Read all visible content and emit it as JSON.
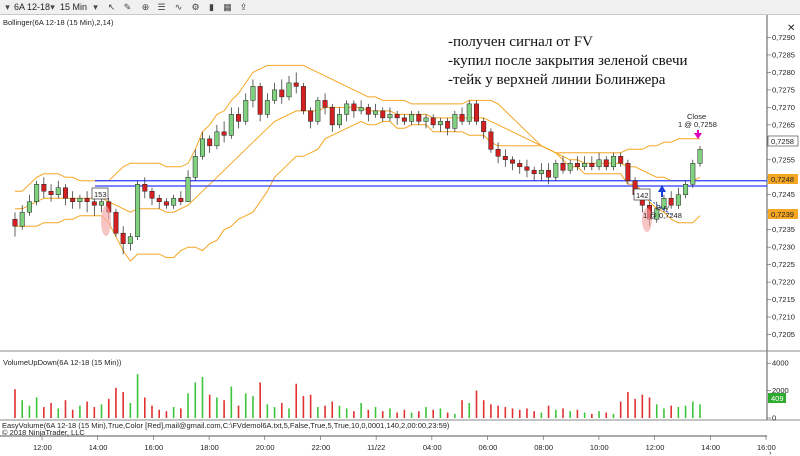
{
  "toolbar": {
    "instrument": "6A 12-18",
    "timeframe": "15 Min",
    "icons": [
      "instrument-dropdown-icon",
      "interval-dropdown-icon",
      "cursor-icon",
      "drawing-tools-icon",
      "zoom-icon",
      "properties-icon",
      "indicators-icon",
      "strategies-icon",
      "chart-style-icon",
      "data-box-icon",
      "share-icon"
    ]
  },
  "indicator_label": "Bollinger(6A 12-18 (15 Min),2,14)",
  "volume_label": "VolumeUpDown(6A 12-18 (15 Min))",
  "strategy_label": "EasyVolume(6A 12-18 (15 Min),True,Color [Red],mail@gmail.com,C:\\FVdemol6A.txt,5,False,True,5,True,10,0,0001,140,2,00:00,23:59)",
  "copyright": "© 2018 NinjaTrader, LLC",
  "notes": [
    "-получен сигнал от FV",
    "-купил после закрытия зеленой свечи",
    "-тейк у верхней линии Болинжера"
  ],
  "fv_level_label": "153",
  "entry_label_num": "142",
  "buy_label": "Buy",
  "buy_price_label": "1 @ 0,7248",
  "close_label": "Close",
  "close_price_label": "1 @ 0,7258",
  "price_badges": {
    "last": "0,7258",
    "fv": "0,7248",
    "buy": "0,7239"
  },
  "volume_badge": "409",
  "colors": {
    "up": "#7fd07f",
    "down": "#d42020",
    "band": "#f5a623",
    "level": "#2b3cff"
  },
  "chart_data": {
    "type": "candlestick",
    "x_labels": [
      "12:00",
      "14:00",
      "16:00",
      "18:00",
      "20:00",
      "22:00",
      "11/22",
      "04:00",
      "06:00",
      "08:00",
      "10:00",
      "12:00",
      "14:00",
      "16:00"
    ],
    "y_ticks": [
      "0,7290",
      "0,7285",
      "0,7280",
      "0,7275",
      "0,7270",
      "0,7265",
      "0,7260",
      "0,7255",
      "0,7250",
      "0,7245",
      "0,7240",
      "0,7235",
      "0,7230",
      "0,7225",
      "0,7220",
      "0,7215",
      "0,7210",
      "0,7205"
    ],
    "ylim": [
      0.7202,
      0.7293
    ],
    "volume_ticks": [
      "4000",
      "2000",
      "0"
    ],
    "volume_ylim": [
      0,
      4600
    ],
    "horizontal_levels": [
      0.7249,
      0.72475
    ],
    "candles": [
      [
        0.7238,
        0.7236,
        0.724,
        0.7233
      ],
      [
        0.7236,
        0.724,
        0.7242,
        0.7235
      ],
      [
        0.724,
        0.7243,
        0.7245,
        0.7239
      ],
      [
        0.7243,
        0.7248,
        0.7249,
        0.7242
      ],
      [
        0.7248,
        0.7246,
        0.725,
        0.7244
      ],
      [
        0.7246,
        0.7245,
        0.7248,
        0.7243
      ],
      [
        0.7245,
        0.7247,
        0.7249,
        0.7244
      ],
      [
        0.7247,
        0.7244,
        0.7248,
        0.7242
      ],
      [
        0.7244,
        0.7243,
        0.7246,
        0.7241
      ],
      [
        0.7243,
        0.7244,
        0.7245,
        0.7241
      ],
      [
        0.7244,
        0.7243,
        0.7246,
        0.724
      ],
      [
        0.7243,
        0.7242,
        0.7244,
        0.7239
      ],
      [
        0.7242,
        0.7243,
        0.7245,
        0.724
      ],
      [
        0.7243,
        0.724,
        0.7244,
        0.7238
      ],
      [
        0.724,
        0.7234,
        0.7241,
        0.7233
      ],
      [
        0.7234,
        0.7231,
        0.7236,
        0.7228
      ],
      [
        0.7231,
        0.7233,
        0.7234,
        0.7229
      ],
      [
        0.7233,
        0.7248,
        0.7249,
        0.7232
      ],
      [
        0.7248,
        0.7246,
        0.725,
        0.7244
      ],
      [
        0.7246,
        0.7244,
        0.7247,
        0.7242
      ],
      [
        0.7244,
        0.7243,
        0.7245,
        0.7241
      ],
      [
        0.7243,
        0.7242,
        0.7244,
        0.7241
      ],
      [
        0.7242,
        0.7244,
        0.7245,
        0.7241
      ],
      [
        0.7244,
        0.7243,
        0.7246,
        0.7242
      ],
      [
        0.7243,
        0.725,
        0.7252,
        0.7243
      ],
      [
        0.725,
        0.7256,
        0.7258,
        0.7249
      ],
      [
        0.7256,
        0.7261,
        0.7263,
        0.7255
      ],
      [
        0.7261,
        0.7259,
        0.7262,
        0.7257
      ],
      [
        0.7259,
        0.7263,
        0.7265,
        0.7258
      ],
      [
        0.7263,
        0.7262,
        0.7266,
        0.726
      ],
      [
        0.7262,
        0.7268,
        0.727,
        0.7261
      ],
      [
        0.7268,
        0.7266,
        0.727,
        0.7264
      ],
      [
        0.7266,
        0.7272,
        0.7274,
        0.7265
      ],
      [
        0.7272,
        0.7276,
        0.7278,
        0.727
      ],
      [
        0.7276,
        0.7268,
        0.7277,
        0.7266
      ],
      [
        0.7268,
        0.7272,
        0.7274,
        0.7267
      ],
      [
        0.7272,
        0.7275,
        0.7277,
        0.7271
      ],
      [
        0.7275,
        0.7273,
        0.7278,
        0.7271
      ],
      [
        0.7273,
        0.7277,
        0.7279,
        0.7272
      ],
      [
        0.7277,
        0.7276,
        0.728,
        0.7274
      ],
      [
        0.7276,
        0.7269,
        0.7277,
        0.7268
      ],
      [
        0.7269,
        0.7266,
        0.727,
        0.7264
      ],
      [
        0.7266,
        0.7272,
        0.7273,
        0.7265
      ],
      [
        0.7272,
        0.727,
        0.7274,
        0.7268
      ],
      [
        0.727,
        0.7265,
        0.7271,
        0.7263
      ],
      [
        0.7265,
        0.7268,
        0.727,
        0.7264
      ],
      [
        0.7268,
        0.7271,
        0.7272,
        0.7266
      ],
      [
        0.7271,
        0.7269,
        0.7272,
        0.7267
      ],
      [
        0.7269,
        0.727,
        0.7272,
        0.7268
      ],
      [
        0.727,
        0.7268,
        0.7271,
        0.7266
      ],
      [
        0.7268,
        0.7269,
        0.7271,
        0.7267
      ],
      [
        0.7269,
        0.7267,
        0.727,
        0.7266
      ],
      [
        0.7267,
        0.7268,
        0.727,
        0.7266
      ],
      [
        0.7268,
        0.7267,
        0.7269,
        0.7265
      ],
      [
        0.7267,
        0.7266,
        0.7268,
        0.7265
      ],
      [
        0.7266,
        0.7268,
        0.7269,
        0.7265
      ],
      [
        0.7268,
        0.7266,
        0.7269,
        0.7265
      ],
      [
        0.7266,
        0.7267,
        0.7268,
        0.7264
      ],
      [
        0.7267,
        0.7265,
        0.7268,
        0.7264
      ],
      [
        0.7265,
        0.7266,
        0.7267,
        0.7263
      ],
      [
        0.7266,
        0.7264,
        0.7267,
        0.7262
      ],
      [
        0.7264,
        0.7268,
        0.7269,
        0.7263
      ],
      [
        0.7268,
        0.7266,
        0.727,
        0.7265
      ],
      [
        0.7266,
        0.7271,
        0.7272,
        0.7265
      ],
      [
        0.7271,
        0.7266,
        0.7272,
        0.7265
      ],
      [
        0.7266,
        0.7263,
        0.7267,
        0.7261
      ],
      [
        0.7263,
        0.7258,
        0.7264,
        0.7257
      ],
      [
        0.7258,
        0.7256,
        0.726,
        0.7254
      ],
      [
        0.7256,
        0.7255,
        0.7258,
        0.7253
      ],
      [
        0.7255,
        0.7254,
        0.7256,
        0.7252
      ],
      [
        0.7254,
        0.7253,
        0.7255,
        0.7251
      ],
      [
        0.7253,
        0.7252,
        0.7255,
        0.725
      ],
      [
        0.7252,
        0.7251,
        0.7253,
        0.7249
      ],
      [
        0.7251,
        0.7252,
        0.7254,
        0.7249
      ],
      [
        0.7252,
        0.725,
        0.7254,
        0.7248
      ],
      [
        0.725,
        0.7254,
        0.7255,
        0.7249
      ],
      [
        0.7254,
        0.7252,
        0.7256,
        0.7251
      ],
      [
        0.7252,
        0.7254,
        0.7255,
        0.7251
      ],
      [
        0.7254,
        0.7253,
        0.7256,
        0.7252
      ],
      [
        0.7253,
        0.7254,
        0.7256,
        0.7252
      ],
      [
        0.7254,
        0.7253,
        0.7256,
        0.7252
      ],
      [
        0.7253,
        0.7255,
        0.7257,
        0.7252
      ],
      [
        0.7255,
        0.7253,
        0.7256,
        0.7252
      ],
      [
        0.7253,
        0.7256,
        0.7257,
        0.7252
      ],
      [
        0.7256,
        0.7254,
        0.7257,
        0.7253
      ],
      [
        0.7254,
        0.7249,
        0.7255,
        0.7248
      ],
      [
        0.7249,
        0.7245,
        0.725,
        0.7244
      ],
      [
        0.7245,
        0.7242,
        0.7246,
        0.724
      ],
      [
        0.7242,
        0.7238,
        0.7243,
        0.7236
      ],
      [
        0.7238,
        0.7241,
        0.7243,
        0.7237
      ],
      [
        0.7241,
        0.7244,
        0.7245,
        0.724
      ],
      [
        0.7244,
        0.7242,
        0.7246,
        0.7241
      ],
      [
        0.7242,
        0.7245,
        0.7247,
        0.7241
      ],
      [
        0.7245,
        0.7248,
        0.7249,
        0.7244
      ],
      [
        0.7248,
        0.7254,
        0.7255,
        0.7247
      ],
      [
        0.7254,
        0.7258,
        0.7259,
        0.7253
      ]
    ],
    "bollinger_upper": [
      0.7246,
      0.7246,
      0.7248,
      0.725,
      0.7251,
      0.7251,
      0.7251,
      0.725,
      0.725,
      0.7249,
      0.7249,
      0.7249,
      0.7249,
      0.7249,
      0.7251,
      0.7253,
      0.7254,
      0.7254,
      0.7254,
      0.7254,
      0.7254,
      0.7253,
      0.7253,
      0.7253,
      0.7254,
      0.7258,
      0.7263,
      0.7265,
      0.7268,
      0.7269,
      0.7272,
      0.7274,
      0.7277,
      0.728,
      0.7281,
      0.7282,
      0.7282,
      0.7282,
      0.7282,
      0.7282,
      0.7282,
      0.7281,
      0.728,
      0.7279,
      0.7278,
      0.7277,
      0.7276,
      0.7275,
      0.7274,
      0.7273,
      0.7273,
      0.7272,
      0.7272,
      0.7272,
      0.7272,
      0.7271,
      0.7271,
      0.7271,
      0.7271,
      0.7271,
      0.7271,
      0.7271,
      0.7271,
      0.7272,
      0.7272,
      0.7272,
      0.7272,
      0.7271,
      0.7269,
      0.7267,
      0.7265,
      0.7263,
      0.7261,
      0.7259,
      0.7258,
      0.7257,
      0.7257,
      0.7257,
      0.7257,
      0.7257,
      0.7257,
      0.7257,
      0.7257,
      0.7257,
      0.7257,
      0.7258,
      0.7258,
      0.7258,
      0.7259,
      0.7259,
      0.726,
      0.726,
      0.7261,
      0.7261,
      0.7261,
      0.7261
    ],
    "bollinger_middle": [
      0.7241,
      0.7241,
      0.7242,
      0.7243,
      0.7244,
      0.7244,
      0.7244,
      0.7244,
      0.7244,
      0.7244,
      0.7244,
      0.7244,
      0.7244,
      0.7243,
      0.7242,
      0.7241,
      0.724,
      0.7241,
      0.7241,
      0.7241,
      0.7241,
      0.724,
      0.724,
      0.7241,
      0.7242,
      0.7244,
      0.7246,
      0.7248,
      0.725,
      0.7252,
      0.7254,
      0.7256,
      0.7258,
      0.726,
      0.7262,
      0.7264,
      0.7266,
      0.7267,
      0.7268,
      0.7269,
      0.7269,
      0.7269,
      0.7269,
      0.727,
      0.727,
      0.727,
      0.727,
      0.727,
      0.727,
      0.7269,
      0.7269,
      0.7269,
      0.7269,
      0.7268,
      0.7268,
      0.7268,
      0.7268,
      0.7268,
      0.7267,
      0.7267,
      0.7267,
      0.7267,
      0.7267,
      0.7267,
      0.7267,
      0.7267,
      0.7266,
      0.7265,
      0.7264,
      0.7263,
      0.7262,
      0.7261,
      0.726,
      0.7259,
      0.7258,
      0.7257,
      0.7256,
      0.7255,
      0.7255,
      0.7254,
      0.7254,
      0.7254,
      0.7254,
      0.7254,
      0.7254,
      0.7253,
      0.7253,
      0.7252,
      0.7251,
      0.725,
      0.725,
      0.7249,
      0.7249,
      0.7249,
      0.7249,
      0.725
    ],
    "bollinger_lower": [
      0.7236,
      0.7236,
      0.7236,
      0.7236,
      0.7237,
      0.7237,
      0.7237,
      0.7238,
      0.7238,
      0.7239,
      0.7239,
      0.7239,
      0.7239,
      0.7237,
      0.7233,
      0.7229,
      0.7226,
      0.7228,
      0.7228,
      0.7228,
      0.7228,
      0.7227,
      0.7227,
      0.7229,
      0.723,
      0.723,
      0.7229,
      0.7231,
      0.7232,
      0.7235,
      0.7236,
      0.7238,
      0.7239,
      0.724,
      0.7243,
      0.7246,
      0.725,
      0.7252,
      0.7254,
      0.7256,
      0.7256,
      0.7257,
      0.7258,
      0.7261,
      0.7262,
      0.7263,
      0.7264,
      0.7265,
      0.7266,
      0.7265,
      0.7265,
      0.7266,
      0.7266,
      0.7264,
      0.7264,
      0.7265,
      0.7265,
      0.7265,
      0.7263,
      0.7263,
      0.7263,
      0.7263,
      0.7263,
      0.7262,
      0.7262,
      0.7262,
      0.726,
      0.7259,
      0.7259,
      0.7259,
      0.7259,
      0.7259,
      0.7259,
      0.7259,
      0.7258,
      0.7257,
      0.7255,
      0.7253,
      0.7253,
      0.7251,
      0.7251,
      0.7251,
      0.7251,
      0.7251,
      0.7251,
      0.7248,
      0.7248,
      0.7246,
      0.7243,
      0.7241,
      0.724,
      0.7238,
      0.7237,
      0.7237,
      0.7237,
      0.7239
    ],
    "volumes": [
      2100,
      1300,
      900,
      1500,
      800,
      1100,
      700,
      1300,
      600,
      900,
      1200,
      800,
      1000,
      1400,
      2200,
      1900,
      1100,
      3200,
      1500,
      900,
      600,
      500,
      800,
      700,
      1800,
      2600,
      3000,
      1700,
      1500,
      1300,
      2300,
      900,
      1800,
      1600,
      2600,
      1000,
      800,
      1100,
      700,
      2500,
      1600,
      1700,
      800,
      900,
      1200,
      900,
      700,
      500,
      1100,
      600,
      800,
      500,
      700,
      400,
      600,
      400,
      500,
      800,
      600,
      700,
      400,
      300,
      1300,
      1100,
      2000,
      1300,
      1000,
      900,
      800,
      700,
      600,
      700,
      500,
      400,
      900,
      600,
      700,
      500,
      600,
      400,
      300,
      500,
      400,
      300,
      1200,
      1900,
      1400,
      1700,
      1500,
      1000,
      700,
      900,
      800,
      900,
      1200,
      1000
    ]
  }
}
